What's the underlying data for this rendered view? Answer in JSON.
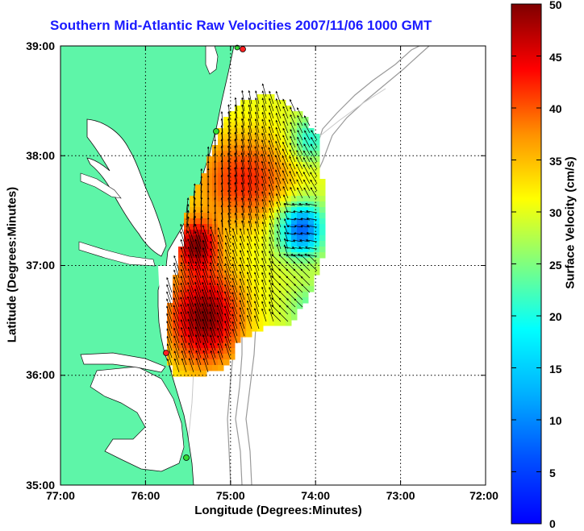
{
  "map": {
    "title": "Southern Mid-Atlantic Raw Velocities 2007/11/06 1000 GMT",
    "xlabel": "Longitude (Degrees:Minutes)",
    "ylabel": "Latitude (Degrees:Minutes)",
    "x_ticks": [
      "77:00",
      "76:00",
      "75:00",
      "74:00",
      "73:00",
      "72:00"
    ],
    "y_ticks": [
      "39:00",
      "38:00",
      "37:00",
      "36:00",
      "35:00"
    ],
    "land_color": "#5ef5a8",
    "title_color": "#1a1aff"
  },
  "colorbar": {
    "label": "Surface Velocity (cm/s)",
    "ticks": [
      "0",
      "5",
      "10",
      "15",
      "20",
      "25",
      "30",
      "35",
      "40",
      "45",
      "50"
    ],
    "min": 0,
    "max": 50,
    "colormap": "jet"
  }
}
